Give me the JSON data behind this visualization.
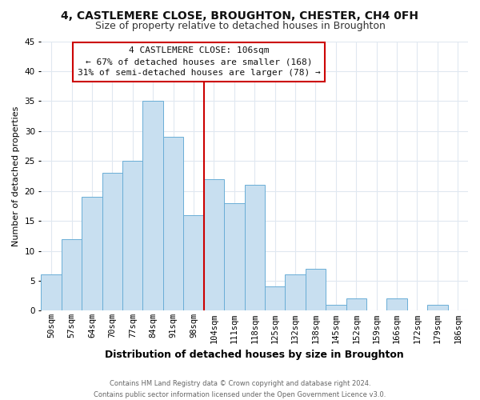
{
  "title": "4, CASTLEMERE CLOSE, BROUGHTON, CHESTER, CH4 0FH",
  "subtitle": "Size of property relative to detached houses in Broughton",
  "xlabel": "Distribution of detached houses by size in Broughton",
  "ylabel": "Number of detached properties",
  "footer_line1": "Contains HM Land Registry data © Crown copyright and database right 2024.",
  "footer_line2": "Contains public sector information licensed under the Open Government Licence v3.0.",
  "bar_labels": [
    "50sqm",
    "57sqm",
    "64sqm",
    "70sqm",
    "77sqm",
    "84sqm",
    "91sqm",
    "98sqm",
    "104sqm",
    "111sqm",
    "118sqm",
    "125sqm",
    "132sqm",
    "138sqm",
    "145sqm",
    "152sqm",
    "159sqm",
    "166sqm",
    "172sqm",
    "179sqm",
    "186sqm"
  ],
  "bar_values": [
    6,
    12,
    19,
    23,
    25,
    35,
    29,
    16,
    22,
    18,
    21,
    4,
    6,
    7,
    1,
    2,
    0,
    2,
    0,
    1,
    0
  ],
  "bar_color": "#c8dff0",
  "bar_edge_color": "#6aaed6",
  "vline_color": "#cc0000",
  "vline_index": 8,
  "ylim": [
    0,
    45
  ],
  "yticks": [
    0,
    5,
    10,
    15,
    20,
    25,
    30,
    35,
    40,
    45
  ],
  "annotation_title": "4 CASTLEMERE CLOSE: 106sqm",
  "annotation_line1": "← 67% of detached houses are smaller (168)",
  "annotation_line2": "31% of semi-detached houses are larger (78) →",
  "annotation_box_facecolor": "#ffffff",
  "annotation_box_edgecolor": "#cc0000",
  "background_color": "#ffffff",
  "plot_bg_color": "#ffffff",
  "grid_color": "#e0e8f0",
  "title_fontsize": 10,
  "subtitle_fontsize": 9,
  "xlabel_fontsize": 9,
  "ylabel_fontsize": 8,
  "tick_fontsize": 7.5,
  "footer_fontsize": 6,
  "annotation_fontsize": 8
}
